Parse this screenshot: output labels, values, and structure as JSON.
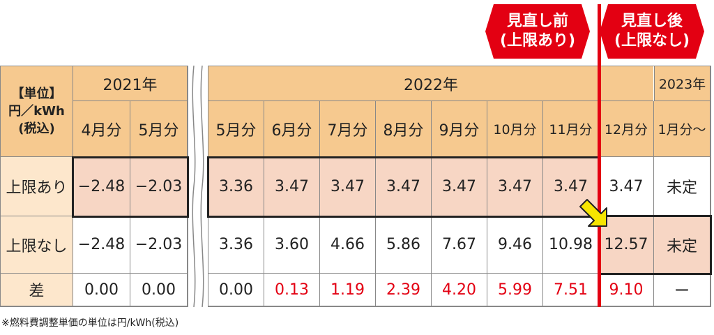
{
  "badges": {
    "before": [
      "見直し前",
      "(上限あり)"
    ],
    "after": [
      "見直し後",
      "(上限なし)"
    ]
  },
  "unit_header": [
    "【単位】",
    "円／kWh",
    "(税込)"
  ],
  "years": {
    "y2021": "2021年",
    "y2022": "2022年",
    "y2023": "2023年"
  },
  "months_2021": [
    "4月分",
    "5月分"
  ],
  "months_2022": [
    "5月分",
    "6月分",
    "7月分",
    "8月分",
    "9月分",
    "10月分",
    "11月分",
    "12月分"
  ],
  "months_2023": [
    "1月分〜"
  ],
  "rows": {
    "capped": {
      "label": "上限あり",
      "left": [
        "−2.48",
        "−2.03"
      ],
      "right": [
        "3.36",
        "3.47",
        "3.47",
        "3.47",
        "3.47",
        "3.47",
        "3.47",
        "3.47",
        "未定"
      ]
    },
    "uncapped": {
      "label": "上限なし",
      "left": [
        "−2.48",
        "−2.03"
      ],
      "right": [
        "3.36",
        "3.60",
        "4.66",
        "5.86",
        "7.67",
        "9.46",
        "10.98",
        "12.57",
        "未定"
      ]
    },
    "diff": {
      "label": "差",
      "left": [
        "0.00",
        "0.00"
      ],
      "right": [
        "0.00",
        "0.13",
        "1.19",
        "2.39",
        "4.20",
        "5.99",
        "7.51",
        "9.10",
        "ー"
      ]
    }
  },
  "footnote": "※燃料費調整単価の単位は円/kWh(税込)",
  "colors": {
    "accent_red": "#e30012",
    "header_orange": "#f6c98f",
    "highlight_pink": "#f7d6c4",
    "arrow_yellow": "#f6e500"
  }
}
